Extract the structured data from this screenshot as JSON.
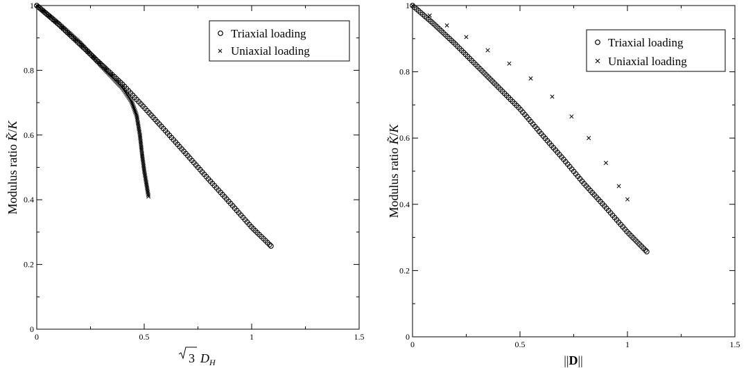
{
  "chart_data": [
    {
      "type": "scatter",
      "xlabel": "√3 D_H",
      "ylabel": "Modulus ratio K̃/K",
      "xlim": [
        0,
        1.5
      ],
      "ylim": [
        0,
        1
      ],
      "x_ticks": [
        "0",
        "0.5",
        "1",
        "1.5"
      ],
      "y_ticks": [
        "0",
        "0.2",
        "0.4",
        "0.6",
        "0.8",
        "1"
      ],
      "legend_position": "top-right",
      "series": [
        {
          "name": "Triaxial loading",
          "marker": "circle",
          "points": [
            [
              0.0,
              1.0
            ],
            [
              0.1,
              0.943
            ],
            [
              0.2,
              0.881
            ],
            [
              0.3,
              0.818
            ],
            [
              0.4,
              0.756
            ],
            [
              0.5,
              0.685
            ],
            [
              0.6,
              0.612
            ],
            [
              0.7,
              0.538
            ],
            [
              0.8,
              0.463
            ],
            [
              0.9,
              0.39
            ],
            [
              1.0,
              0.315
            ],
            [
              1.09,
              0.257
            ]
          ]
        },
        {
          "name": "Uniaxial loading",
          "marker": "x",
          "points": [
            [
              0.0,
              1.0
            ],
            [
              0.1,
              0.945
            ],
            [
              0.2,
              0.885
            ],
            [
              0.3,
              0.815
            ],
            [
              0.4,
              0.745
            ],
            [
              0.44,
              0.705
            ],
            [
              0.465,
              0.66
            ],
            [
              0.48,
              0.6
            ],
            [
              0.49,
              0.54
            ],
            [
              0.5,
              0.49
            ],
            [
              0.51,
              0.45
            ],
            [
              0.52,
              0.41
            ]
          ]
        }
      ]
    },
    {
      "type": "scatter",
      "xlabel": "||D||",
      "ylabel": "Modulus ratio K̃/K",
      "xlim": [
        0,
        1.5
      ],
      "ylim": [
        0,
        1
      ],
      "x_ticks": [
        "0",
        "0.5",
        "1",
        "1.5"
      ],
      "y_ticks": [
        "0",
        "0.2",
        "0.4",
        "0.6",
        "0.8",
        "1"
      ],
      "legend_position": "top-right",
      "series": [
        {
          "name": "Triaxial loading",
          "marker": "circle",
          "points": [
            [
              0.0,
              1.0
            ],
            [
              0.1,
              0.944
            ],
            [
              0.2,
              0.883
            ],
            [
              0.3,
              0.818
            ],
            [
              0.4,
              0.753
            ],
            [
              0.5,
              0.688
            ],
            [
              0.6,
              0.612
            ],
            [
              0.7,
              0.538
            ],
            [
              0.8,
              0.461
            ],
            [
              0.9,
              0.39
            ],
            [
              1.0,
              0.316
            ],
            [
              1.09,
              0.257
            ]
          ]
        },
        {
          "name": "Uniaxial loading",
          "marker": "x",
          "points": [
            [
              0.0,
              1.0
            ],
            [
              0.08,
              0.97
            ],
            [
              0.16,
              0.94
            ],
            [
              0.25,
              0.905
            ],
            [
              0.35,
              0.865
            ],
            [
              0.45,
              0.825
            ],
            [
              0.55,
              0.78
            ],
            [
              0.65,
              0.725
            ],
            [
              0.74,
              0.665
            ],
            [
              0.82,
              0.6
            ],
            [
              0.9,
              0.525
            ],
            [
              0.96,
              0.455
            ],
            [
              1.0,
              0.415
            ]
          ]
        }
      ]
    }
  ]
}
